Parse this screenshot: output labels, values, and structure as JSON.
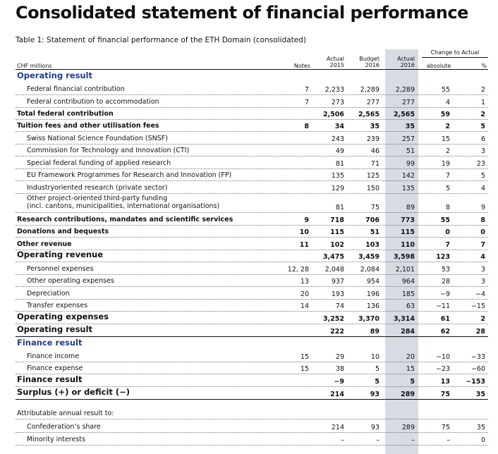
{
  "title": "Consolidated statement of financial performance",
  "caption": "Table 1: Statement of financial performance of the ETH Domain (consolidated)",
  "headers": {
    "label": "CHF millions",
    "notes": "Notes",
    "actual2015_l1": "Actual",
    "actual2015_l2": "2015",
    "budget2016_l1": "Budget",
    "budget2016_l2": "2016",
    "actual2016_l1": "Actual",
    "actual2016_l2": "2016",
    "change_group": "Change to Actual",
    "absolute": "absolute",
    "percent": "%"
  },
  "rows": [
    {
      "label": "Operating result",
      "style": "sec",
      "notes": "",
      "a15": "",
      "b16": "",
      "a16": "",
      "abs": "",
      "pct": ""
    },
    {
      "label": "Federal financial contribution",
      "style": "norm",
      "notes": "7",
      "a15": "2,233",
      "b16": "2,289",
      "a16": "2,289",
      "abs": "55",
      "pct": "2"
    },
    {
      "label": "Federal contribution to accommodation",
      "style": "norm",
      "notes": "7",
      "a15": "273",
      "b16": "277",
      "a16": "277",
      "abs": "4",
      "pct": "1"
    },
    {
      "label": "Total federal contribution",
      "style": "b",
      "notes": "",
      "a15": "2,506",
      "b16": "2,565",
      "a16": "2,565",
      "abs": "59",
      "pct": "2"
    },
    {
      "label": "Tuition fees and other utilisation fees",
      "style": "b",
      "notes": "8",
      "a15": "34",
      "b16": "35",
      "a16": "35",
      "abs": "2",
      "pct": "5"
    },
    {
      "label": "Swiss National Science Foundation (SNSF)",
      "style": "norm",
      "notes": "",
      "a15": "243",
      "b16": "239",
      "a16": "257",
      "abs": "15",
      "pct": "6"
    },
    {
      "label": "Commission for Technology and Innovation (CTI)",
      "style": "norm",
      "notes": "",
      "a15": "49",
      "b16": "46",
      "a16": "51",
      "abs": "2",
      "pct": "3"
    },
    {
      "label": "Special federal funding of applied research",
      "style": "norm",
      "notes": "",
      "a15": "81",
      "b16": "71",
      "a16": "99",
      "abs": "19",
      "pct": "23"
    },
    {
      "label": "EU Framework Programmes for Research and Innovation (FP)",
      "style": "norm",
      "notes": "",
      "a15": "135",
      "b16": "125",
      "a16": "142",
      "abs": "7",
      "pct": "5"
    },
    {
      "label": "Industryoriented research (private sector)",
      "style": "norm",
      "notes": "",
      "a15": "129",
      "b16": "150",
      "a16": "135",
      "abs": "5",
      "pct": "4"
    },
    {
      "label": "Other project-oriented third-party funding",
      "label2": "(incl. cantons, municipalities, international organisations)",
      "style": "norm",
      "notes": "",
      "a15": "81",
      "b16": "75",
      "a16": "89",
      "abs": "8",
      "pct": "9"
    },
    {
      "label": "Research contributions, mandates and scientific services",
      "style": "b",
      "notes": "9",
      "a15": "718",
      "b16": "706",
      "a16": "773",
      "abs": "55",
      "pct": "8"
    },
    {
      "label": "Donations and bequests",
      "style": "b",
      "notes": "10",
      "a15": "115",
      "b16": "51",
      "a16": "115",
      "abs": "0",
      "pct": "0"
    },
    {
      "label": "Other revenue",
      "style": "b",
      "notes": "11",
      "a15": "102",
      "b16": "103",
      "a16": "110",
      "abs": "7",
      "pct": "7"
    },
    {
      "label": "Operating revenue",
      "style": "big",
      "notes": "",
      "a15": "3,475",
      "b16": "3,459",
      "a16": "3,598",
      "abs": "123",
      "pct": "4"
    },
    {
      "label": "Personnel expenses",
      "style": "norm",
      "notes": "12, 28",
      "a15": "2,048",
      "b16": "2,084",
      "a16": "2,101",
      "abs": "53",
      "pct": "3"
    },
    {
      "label": "Other operating expenses",
      "style": "norm",
      "notes": "13",
      "a15": "937",
      "b16": "954",
      "a16": "964",
      "abs": "28",
      "pct": "3"
    },
    {
      "label": "Depreciation",
      "style": "norm",
      "notes": "20",
      "a15": "193",
      "b16": "196",
      "a16": "185",
      "abs": "−9",
      "pct": "−4"
    },
    {
      "label": "Transfer expenses",
      "style": "norm",
      "notes": "14",
      "a15": "74",
      "b16": "136",
      "a16": "63",
      "abs": "−11",
      "pct": "−15"
    },
    {
      "label": "Operating expenses",
      "style": "big",
      "notes": "",
      "a15": "3,252",
      "b16": "3,370",
      "a16": "3,314",
      "abs": "61",
      "pct": "2"
    },
    {
      "label": "Operating result",
      "style": "big",
      "notes": "",
      "a15": "222",
      "b16": "89",
      "a16": "284",
      "abs": "62",
      "pct": "28"
    },
    {
      "label": "Finance result",
      "style": "sec",
      "notes": "",
      "a15": "",
      "b16": "",
      "a16": "",
      "abs": "",
      "pct": ""
    },
    {
      "label": "Finance income",
      "style": "norm",
      "notes": "15",
      "a15": "29",
      "b16": "10",
      "a16": "20",
      "abs": "−10",
      "pct": "−33"
    },
    {
      "label": "Finance expense",
      "style": "norm",
      "notes": "15",
      "a15": "38",
      "b16": "5",
      "a16": "15",
      "abs": "−23",
      "pct": "−60"
    },
    {
      "label": "Finance result",
      "style": "big",
      "notes": "",
      "a15": "−9",
      "b16": "5",
      "a16": "5",
      "abs": "13",
      "pct": "−153"
    },
    {
      "label": "Surplus (+) or deficit (−)",
      "style": "big",
      "notes": "",
      "a15": "214",
      "b16": "93",
      "a16": "289",
      "abs": "75",
      "pct": "35"
    },
    {
      "label": "Attributable annual result to:",
      "style": "plain",
      "notes": "",
      "a15": "",
      "b16": "",
      "a16": "",
      "abs": "",
      "pct": ""
    },
    {
      "label": "Confederation’s share",
      "style": "norm",
      "notes": "",
      "a15": "214",
      "b16": "93",
      "a16": "289",
      "abs": "75",
      "pct": "35"
    },
    {
      "label": "Minority interests",
      "style": "norm",
      "notes": "",
      "a15": "–",
      "b16": "–",
      "a16": "–",
      "abs": "–",
      "pct": "0"
    }
  ]
}
